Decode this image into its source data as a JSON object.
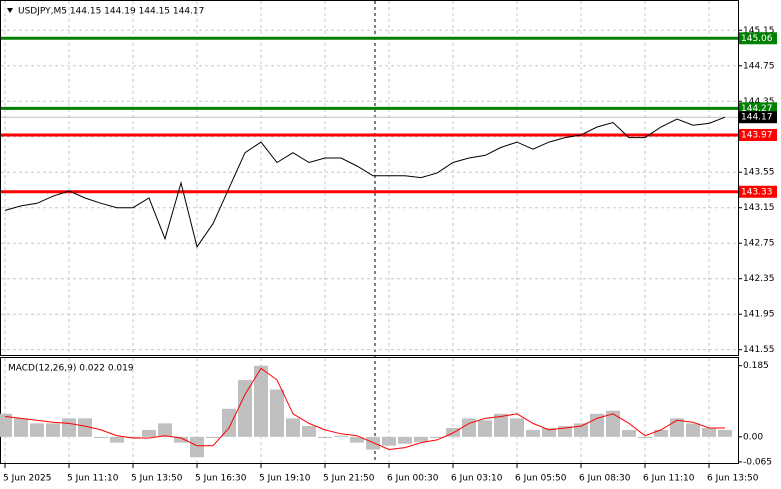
{
  "chart_data": [
    {
      "type": "line",
      "title": "USDJPY,M5  144.15 144.19 144.15 144.17",
      "categories": [
        "5 Jun 2025",
        null,
        null,
        null,
        "5 Jun 11:10",
        null,
        null,
        null,
        "5 Jun 13:50",
        null,
        null,
        null,
        "5 Jun 16:30",
        null,
        null,
        null,
        "5 Jun 19:10",
        null,
        null,
        null,
        "5 Jun 21:50",
        null,
        null,
        null,
        "6 Jun 00:30",
        null,
        null,
        null,
        "6 Jun 03:10",
        null,
        null,
        null,
        "6 Jun 05:50",
        null,
        null,
        null,
        "6 Jun 08:30",
        null,
        null,
        null,
        "6 Jun 11:10",
        null,
        null,
        null,
        "6 Jun 13:50",
        null
      ],
      "series": [
        {
          "color": "#000000",
          "values": [
            143.12,
            143.17,
            143.2,
            143.28,
            143.34,
            143.26,
            143.2,
            143.15,
            143.15,
            143.26,
            142.8,
            143.43,
            142.71,
            142.97,
            143.37,
            143.77,
            143.89,
            143.66,
            143.77,
            143.66,
            143.71,
            143.71,
            143.62,
            143.51,
            143.51,
            143.51,
            143.49,
            143.54,
            143.66,
            143.71,
            143.74,
            143.83,
            143.89,
            143.81,
            143.89,
            143.94,
            143.97,
            144.06,
            144.11,
            143.94,
            143.94,
            144.06,
            144.15,
            144.08,
            144.1,
            144.17
          ]
        }
      ],
      "levels": [
        {
          "value": 145.06,
          "color": "#008000"
        },
        {
          "value": 144.27,
          "color": "#008000"
        },
        {
          "value": 143.97,
          "color": "#ff0000"
        },
        {
          "value": 143.33,
          "color": "#ff0000"
        }
      ],
      "current_price": 144.17,
      "ylim": [
        141.49,
        145.48
      ],
      "yticks": [
        145.15,
        144.75,
        144.35,
        143.95,
        143.55,
        143.15,
        142.75,
        142.35,
        141.95,
        141.55
      ],
      "grid": true
    },
    {
      "type": "bar",
      "title": "MACD(12,26,9) 0.022 0.019",
      "series": [
        {
          "type": "bar",
          "color": "#c0c0c0",
          "values": [
            0.06,
            0.048,
            0.035,
            0.035,
            0.048,
            0.048,
            -0.003,
            -0.015,
            -0.003,
            0.018,
            0.035,
            -0.015,
            -0.053,
            -0.003,
            0.073,
            0.148,
            0.185,
            0.123,
            0.048,
            0.028,
            -0.003,
            0.003,
            -0.015,
            -0.033,
            -0.023,
            -0.018,
            -0.013,
            -0.003,
            0.023,
            0.048,
            0.043,
            0.06,
            0.048,
            0.018,
            0.023,
            0.028,
            0.035,
            0.06,
            0.068,
            0.018,
            -0.003,
            0.018,
            0.048,
            0.035,
            0.023,
            0.018
          ]
        },
        {
          "type": "line",
          "color": "#ff0000",
          "values": [
            0.053,
            0.048,
            0.043,
            0.038,
            0.035,
            0.028,
            0.018,
            0.003,
            -0.003,
            -0.003,
            0.003,
            -0.003,
            -0.023,
            -0.023,
            0.023,
            0.11,
            0.178,
            0.148,
            0.06,
            0.035,
            0.018,
            0.008,
            0.003,
            -0.015,
            -0.033,
            -0.028,
            -0.015,
            -0.008,
            0.01,
            0.035,
            0.048,
            0.053,
            0.06,
            0.035,
            0.018,
            0.023,
            0.028,
            0.048,
            0.06,
            0.035,
            0.003,
            0.018,
            0.043,
            0.038,
            0.023,
            0.023
          ]
        }
      ],
      "ylim": [
        -0.068,
        0.205
      ],
      "yticks": [
        0.185,
        {
          "value": 0,
          "label": "0.00"
        },
        -0.065
      ]
    }
  ]
}
